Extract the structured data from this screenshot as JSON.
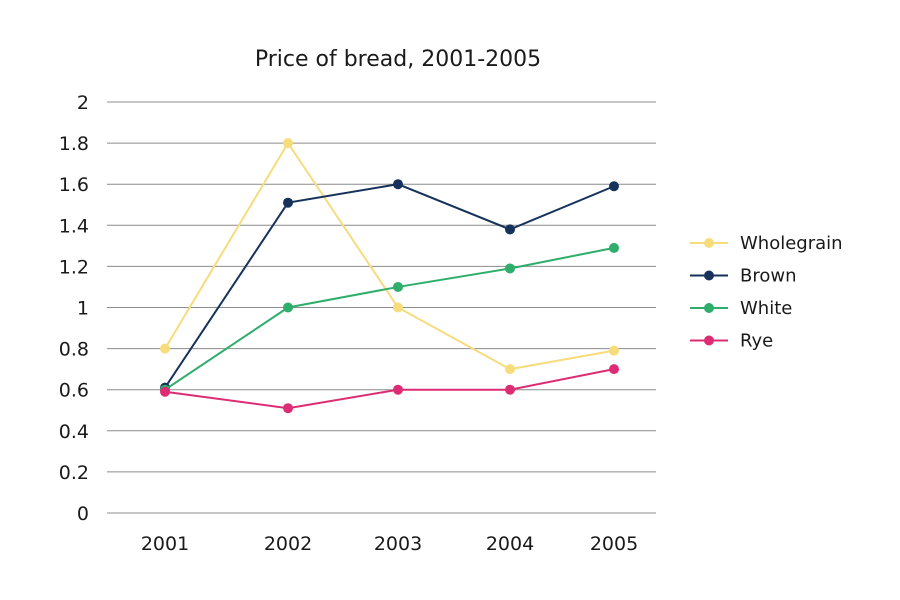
{
  "chart_data": {
    "type": "line",
    "title": "Price of bread, 2001-2005",
    "xlabel": "",
    "ylabel": "",
    "x": [
      "2001",
      "2002",
      "2003",
      "2004",
      "2005"
    ],
    "ylim": [
      0,
      2
    ],
    "yticks": [
      "0",
      "0.2",
      "0.4",
      "0.6",
      "0.8",
      "1",
      "1.2",
      "1.4",
      "1.6",
      "1.8",
      "2"
    ],
    "grid": true,
    "legend_position": "right",
    "series": [
      {
        "name": "Wholegrain",
        "color": "#f7dc7c",
        "values": [
          0.8,
          1.8,
          1.0,
          0.7,
          0.79
        ]
      },
      {
        "name": "Brown",
        "color": "#16325c",
        "values": [
          0.61,
          1.51,
          1.6,
          1.38,
          1.59
        ]
      },
      {
        "name": "White",
        "color": "#2fad6b",
        "values": [
          0.6,
          1.0,
          1.1,
          1.19,
          1.29
        ]
      },
      {
        "name": "Rye",
        "color": "#dd2c73",
        "values": [
          0.59,
          0.51,
          0.6,
          0.6,
          0.7
        ]
      }
    ]
  }
}
